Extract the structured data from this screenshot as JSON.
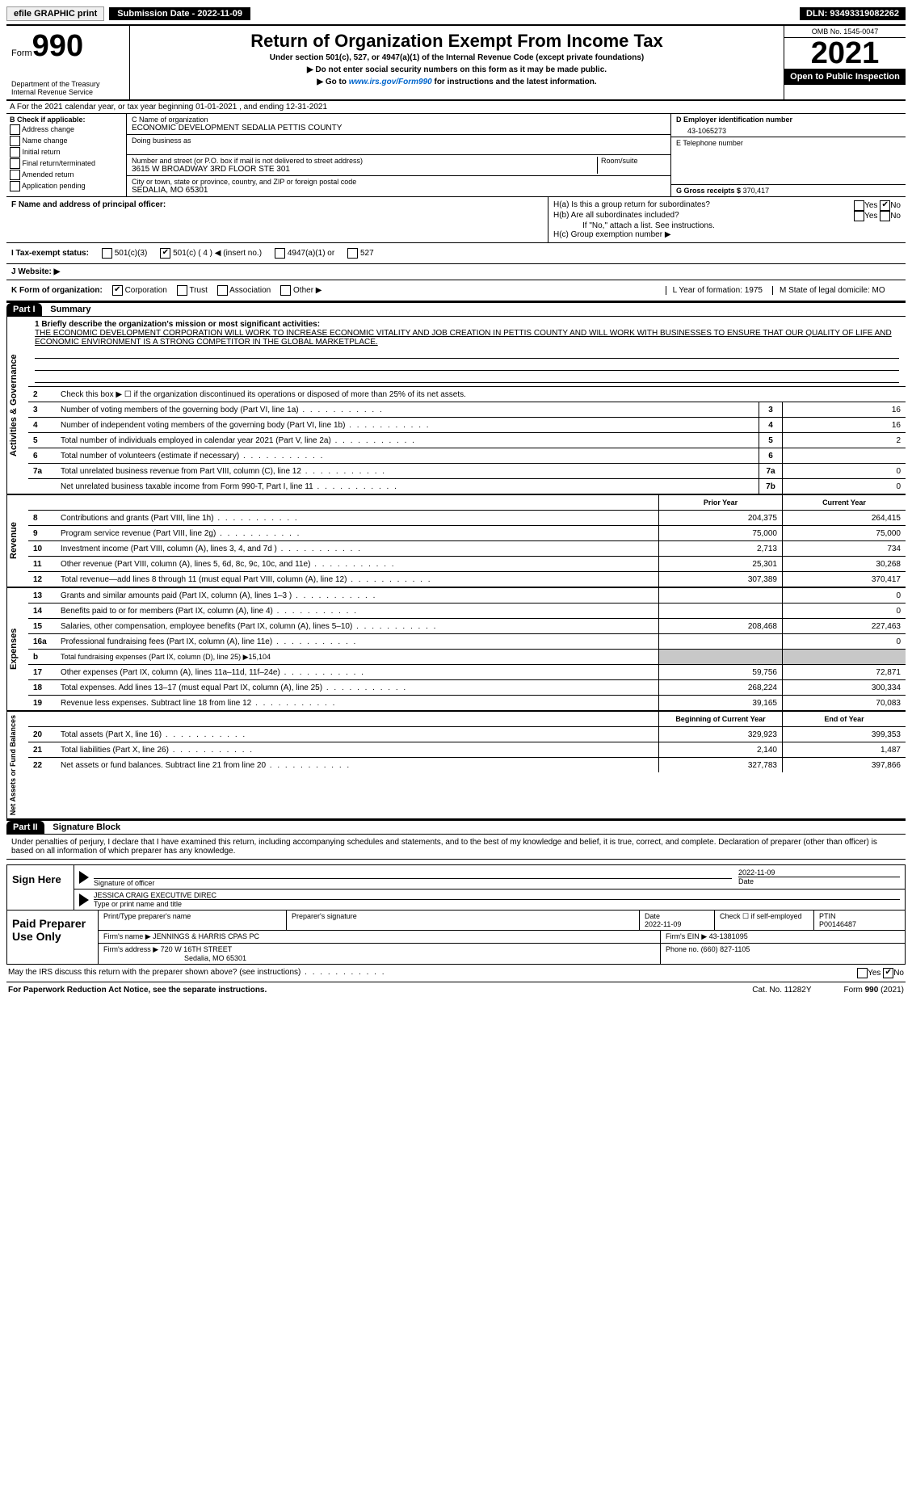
{
  "topbar": {
    "efile": "efile GRAPHIC print",
    "submission_label": "Submission Date - 2022-11-09",
    "dln": "DLN: 93493319082262"
  },
  "header": {
    "form_prefix": "Form",
    "form_number": "990",
    "dept": "Department of the Treasury Internal Revenue Service",
    "title": "Return of Organization Exempt From Income Tax",
    "sub1": "Under section 501(c), 527, or 4947(a)(1) of the Internal Revenue Code (except private foundations)",
    "sub2": "▶ Do not enter social security numbers on this form as it may be made public.",
    "sub3_prefix": "▶ Go to ",
    "sub3_link": "www.irs.gov/Form990",
    "sub3_suffix": " for instructions and the latest information.",
    "omb": "OMB No. 1545-0047",
    "year": "2021",
    "open": "Open to Public Inspection"
  },
  "section_a": "A For the 2021 calendar year, or tax year beginning 01-01-2021  , and ending 12-31-2021",
  "col_b": {
    "header": "B Check if applicable:",
    "items": [
      "Address change",
      "Name change",
      "Initial return",
      "Final return/terminated",
      "Amended return",
      "Application pending"
    ]
  },
  "org": {
    "c_label": "C Name of organization",
    "name": "ECONOMIC DEVELOPMENT SEDALIA PETTIS COUNTY",
    "dba_label": "Doing business as",
    "addr_label": "Number and street (or P.O. box if mail is not delivered to street address)",
    "room_label": "Room/suite",
    "street": "3615 W BROADWAY 3RD FLOOR STE 301",
    "city_label": "City or town, state or province, country, and ZIP or foreign postal code",
    "city": "SEDALIA, MO  65301"
  },
  "col_d": {
    "ein_label": "D Employer identification number",
    "ein": "43-1065273",
    "phone_label": "E Telephone number",
    "gross_label": "G Gross receipts $",
    "gross": "370,417"
  },
  "row_f": {
    "f_label": "F Name and address of principal officer:",
    "ha": "H(a)  Is this a group return for subordinates?",
    "hb": "H(b)  Are all subordinates included?",
    "hb_note": "If \"No,\" attach a list. See instructions.",
    "hc": "H(c)  Group exemption number ▶",
    "yes": "Yes",
    "no": "No"
  },
  "row_i": {
    "label": "I  Tax-exempt status:",
    "opt1": "501(c)(3)",
    "opt2": "501(c) ( 4 ) ◀ (insert no.)",
    "opt3": "4947(a)(1) or",
    "opt4": "527"
  },
  "row_j": "J  Website: ▶",
  "row_k": {
    "label": "K Form of organization:",
    "opts": [
      "Corporation",
      "Trust",
      "Association",
      "Other ▶"
    ],
    "l": "L Year of formation: 1975",
    "m": "M State of legal domicile: MO"
  },
  "part1": {
    "num": "Part I",
    "title": "Summary",
    "mission_label": "1  Briefly describe the organization's mission or most significant activities:",
    "mission": "THE ECONOMIC DEVELOPMENT CORPORATION WILL WORK TO INCREASE ECONOMIC VITALITY AND JOB CREATION IN PETTIS COUNTY AND WILL WORK WITH BUSINESSES TO ENSURE THAT OUR QUALITY OF LIFE AND ECONOMIC ENVIRONMENT IS A STRONG COMPETITOR IN THE GLOBAL MARKETPLACE."
  },
  "governance": {
    "label": "Activities & Governance",
    "l2": "Check this box ▶ ☐ if the organization discontinued its operations or disposed of more than 25% of its net assets.",
    "lines": [
      {
        "n": "3",
        "d": "Number of voting members of the governing body (Part VI, line 1a)",
        "b": "3",
        "v": "16"
      },
      {
        "n": "4",
        "d": "Number of independent voting members of the governing body (Part VI, line 1b)",
        "b": "4",
        "v": "16"
      },
      {
        "n": "5",
        "d": "Total number of individuals employed in calendar year 2021 (Part V, line 2a)",
        "b": "5",
        "v": "2"
      },
      {
        "n": "6",
        "d": "Total number of volunteers (estimate if necessary)",
        "b": "6",
        "v": ""
      },
      {
        "n": "7a",
        "d": "Total unrelated business revenue from Part VIII, column (C), line 12",
        "b": "7a",
        "v": "0"
      },
      {
        "n": "",
        "d": "Net unrelated business taxable income from Form 990-T, Part I, line 11",
        "b": "7b",
        "v": "0"
      }
    ]
  },
  "revenue": {
    "label": "Revenue",
    "header_prior": "Prior Year",
    "header_current": "Current Year",
    "lines": [
      {
        "n": "8",
        "d": "Contributions and grants (Part VIII, line 1h)",
        "p": "204,375",
        "c": "264,415"
      },
      {
        "n": "9",
        "d": "Program service revenue (Part VIII, line 2g)",
        "p": "75,000",
        "c": "75,000"
      },
      {
        "n": "10",
        "d": "Investment income (Part VIII, column (A), lines 3, 4, and 7d )",
        "p": "2,713",
        "c": "734"
      },
      {
        "n": "11",
        "d": "Other revenue (Part VIII, column (A), lines 5, 6d, 8c, 9c, 10c, and 11e)",
        "p": "25,301",
        "c": "30,268"
      },
      {
        "n": "12",
        "d": "Total revenue—add lines 8 through 11 (must equal Part VIII, column (A), line 12)",
        "p": "307,389",
        "c": "370,417"
      }
    ]
  },
  "expenses": {
    "label": "Expenses",
    "lines": [
      {
        "n": "13",
        "d": "Grants and similar amounts paid (Part IX, column (A), lines 1–3 )",
        "p": "",
        "c": "0"
      },
      {
        "n": "14",
        "d": "Benefits paid to or for members (Part IX, column (A), line 4)",
        "p": "",
        "c": "0"
      },
      {
        "n": "15",
        "d": "Salaries, other compensation, employee benefits (Part IX, column (A), lines 5–10)",
        "p": "208,468",
        "c": "227,463"
      },
      {
        "n": "16a",
        "d": "Professional fundraising fees (Part IX, column (A), line 11e)",
        "p": "",
        "c": "0"
      },
      {
        "n": "b",
        "d": "Total fundraising expenses (Part IX, column (D), line 25) ▶15,104",
        "p": "shaded",
        "c": "shaded"
      },
      {
        "n": "17",
        "d": "Other expenses (Part IX, column (A), lines 11a–11d, 11f–24e)",
        "p": "59,756",
        "c": "72,871"
      },
      {
        "n": "18",
        "d": "Total expenses. Add lines 13–17 (must equal Part IX, column (A), line 25)",
        "p": "268,224",
        "c": "300,334"
      },
      {
        "n": "19",
        "d": "Revenue less expenses. Subtract line 18 from line 12",
        "p": "39,165",
        "c": "70,083"
      }
    ]
  },
  "netassets": {
    "label": "Net Assets or Fund Balances",
    "header_prior": "Beginning of Current Year",
    "header_current": "End of Year",
    "lines": [
      {
        "n": "20",
        "d": "Total assets (Part X, line 16)",
        "p": "329,923",
        "c": "399,353"
      },
      {
        "n": "21",
        "d": "Total liabilities (Part X, line 26)",
        "p": "2,140",
        "c": "1,487"
      },
      {
        "n": "22",
        "d": "Net assets or fund balances. Subtract line 21 from line 20",
        "p": "327,783",
        "c": "397,866"
      }
    ]
  },
  "part2": {
    "num": "Part II",
    "title": "Signature Block",
    "declaration": "Under penalties of perjury, I declare that I have examined this return, including accompanying schedules and statements, and to the best of my knowledge and belief, it is true, correct, and complete. Declaration of preparer (other than officer) is based on all information of which preparer has any knowledge."
  },
  "sign": {
    "label": "Sign Here",
    "sig_label": "Signature of officer",
    "date": "2022-11-09",
    "date_label": "Date",
    "name": "JESSICA CRAIG EXECUTIVE DIREC",
    "name_label": "Type or print name and title"
  },
  "prep": {
    "label": "Paid Preparer Use Only",
    "h1": "Print/Type preparer's name",
    "h2": "Preparer's signature",
    "h3": "Date",
    "h3v": "2022-11-09",
    "h4": "Check ☐ if self-employed",
    "h5": "PTIN",
    "h5v": "P00146487",
    "firm_label": "Firm's name    ▶",
    "firm": "JENNINGS & HARRIS CPAS PC",
    "ein_label": "Firm's EIN ▶",
    "ein": "43-1381095",
    "addr_label": "Firm's address ▶",
    "addr1": "720 W 16TH STREET",
    "addr2": "Sedalia, MO  65301",
    "phone_label": "Phone no.",
    "phone": "(660) 827-1105"
  },
  "discuss": "May the IRS discuss this return with the preparer shown above? (see instructions)",
  "footer": {
    "left": "For Paperwork Reduction Act Notice, see the separate instructions.",
    "mid": "Cat. No. 11282Y",
    "right": "Form 990 (2021)"
  }
}
